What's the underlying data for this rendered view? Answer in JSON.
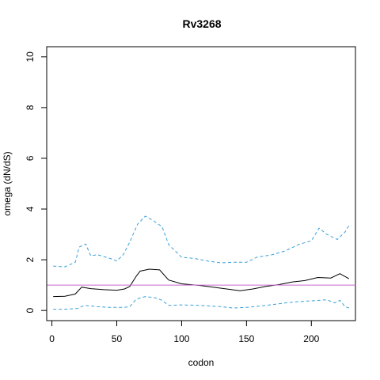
{
  "chart_data": {
    "type": "line",
    "title": "Rv3268",
    "xlabel": "codon",
    "ylabel": "omega (dN/dS)",
    "xlim": [
      -4,
      234
    ],
    "ylim": [
      -0.4,
      10.4
    ],
    "x_ticks": [
      0,
      50,
      100,
      150,
      200
    ],
    "y_ticks": [
      0,
      2,
      4,
      6,
      8,
      10
    ],
    "reference_line": {
      "y": 1,
      "color": "#cc66cc"
    },
    "grid": false,
    "legend": "none",
    "series": [
      {
        "style": "solid",
        "color": "#000000",
        "points": [
          [
            1,
            0.55
          ],
          [
            10,
            0.56
          ],
          [
            18,
            0.65
          ],
          [
            23,
            0.92
          ],
          [
            30,
            0.86
          ],
          [
            40,
            0.82
          ],
          [
            50,
            0.8
          ],
          [
            56,
            0.85
          ],
          [
            60,
            0.95
          ],
          [
            65,
            1.35
          ],
          [
            68,
            1.55
          ],
          [
            75,
            1.63
          ],
          [
            83,
            1.6
          ],
          [
            90,
            1.2
          ],
          [
            100,
            1.05
          ],
          [
            115,
            0.98
          ],
          [
            130,
            0.88
          ],
          [
            145,
            0.78
          ],
          [
            155,
            0.85
          ],
          [
            165,
            0.95
          ],
          [
            175,
            1.02
          ],
          [
            185,
            1.12
          ],
          [
            195,
            1.18
          ],
          [
            205,
            1.3
          ],
          [
            215,
            1.28
          ],
          [
            222,
            1.45
          ],
          [
            229,
            1.25
          ]
        ]
      },
      {
        "style": "dashed",
        "color": "#3aa0d8",
        "points": [
          [
            1,
            1.75
          ],
          [
            10,
            1.72
          ],
          [
            18,
            1.9
          ],
          [
            21,
            2.5
          ],
          [
            26,
            2.62
          ],
          [
            30,
            2.15
          ],
          [
            35,
            2.2
          ],
          [
            45,
            2.05
          ],
          [
            50,
            1.95
          ],
          [
            55,
            2.2
          ],
          [
            60,
            2.7
          ],
          [
            66,
            3.4
          ],
          [
            72,
            3.72
          ],
          [
            78,
            3.55
          ],
          [
            85,
            3.3
          ],
          [
            90,
            2.6
          ],
          [
            100,
            2.1
          ],
          [
            110,
            2.05
          ],
          [
            120,
            1.95
          ],
          [
            130,
            1.88
          ],
          [
            140,
            1.9
          ],
          [
            150,
            1.9
          ],
          [
            158,
            2.1
          ],
          [
            170,
            2.2
          ],
          [
            180,
            2.35
          ],
          [
            190,
            2.6
          ],
          [
            200,
            2.75
          ],
          [
            206,
            3.25
          ],
          [
            212,
            3.0
          ],
          [
            220,
            2.8
          ],
          [
            226,
            3.1
          ],
          [
            229,
            3.35
          ]
        ]
      },
      {
        "style": "dashed",
        "color": "#3aa0d8",
        "points": [
          [
            1,
            0.05
          ],
          [
            10,
            0.05
          ],
          [
            20,
            0.08
          ],
          [
            25,
            0.2
          ],
          [
            35,
            0.15
          ],
          [
            45,
            0.12
          ],
          [
            55,
            0.12
          ],
          [
            60,
            0.15
          ],
          [
            65,
            0.45
          ],
          [
            72,
            0.55
          ],
          [
            80,
            0.5
          ],
          [
            85,
            0.4
          ],
          [
            90,
            0.2
          ],
          [
            100,
            0.22
          ],
          [
            115,
            0.2
          ],
          [
            130,
            0.15
          ],
          [
            140,
            0.1
          ],
          [
            150,
            0.12
          ],
          [
            165,
            0.2
          ],
          [
            180,
            0.3
          ],
          [
            190,
            0.35
          ],
          [
            200,
            0.38
          ],
          [
            212,
            0.42
          ],
          [
            218,
            0.3
          ],
          [
            222,
            0.4
          ],
          [
            226,
            0.15
          ],
          [
            229,
            0.1
          ]
        ]
      }
    ]
  }
}
